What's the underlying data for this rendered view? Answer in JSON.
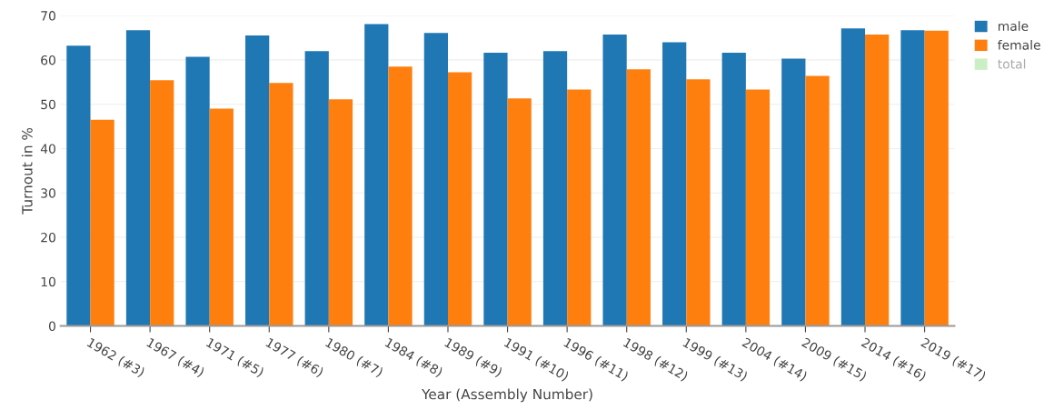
{
  "chart_data": {
    "type": "bar",
    "xlabel": "Year (Assembly Number)",
    "ylabel": "Turnout in %",
    "categories": [
      "1962 (#3)",
      "1967 (#4)",
      "1971 (#5)",
      "1977 (#6)",
      "1980 (#7)",
      "1984 (#8)",
      "1989 (#9)",
      "1991 (#10)",
      "1996 (#11)",
      "1998 (#12)",
      "1999 (#13)",
      "2004 (#14)",
      "2009 (#15)",
      "2014 (#16)",
      "2019 (#17)"
    ],
    "series": [
      {
        "name": "male",
        "color": "#1f77b4",
        "values": [
          63.2,
          66.7,
          60.7,
          65.5,
          62.0,
          68.1,
          66.1,
          61.6,
          62.0,
          65.7,
          64.0,
          61.6,
          60.3,
          67.1,
          66.7
        ]
      },
      {
        "name": "female",
        "color": "#ff7f0e",
        "values": [
          46.5,
          55.4,
          49.0,
          54.8,
          51.1,
          58.5,
          57.2,
          51.3,
          53.3,
          57.9,
          55.6,
          53.3,
          56.4,
          65.7,
          66.6
        ]
      },
      {
        "name": "total",
        "color": "#98df8a",
        "values": [
          null,
          null,
          null,
          null,
          null,
          null,
          null,
          null,
          null,
          null,
          null,
          null,
          null,
          null,
          null
        ]
      }
    ],
    "ylim": [
      0,
      70
    ],
    "yticks": [
      0,
      10,
      20,
      30,
      40,
      50,
      60,
      70
    ],
    "grid": "y",
    "legend": "top right"
  }
}
